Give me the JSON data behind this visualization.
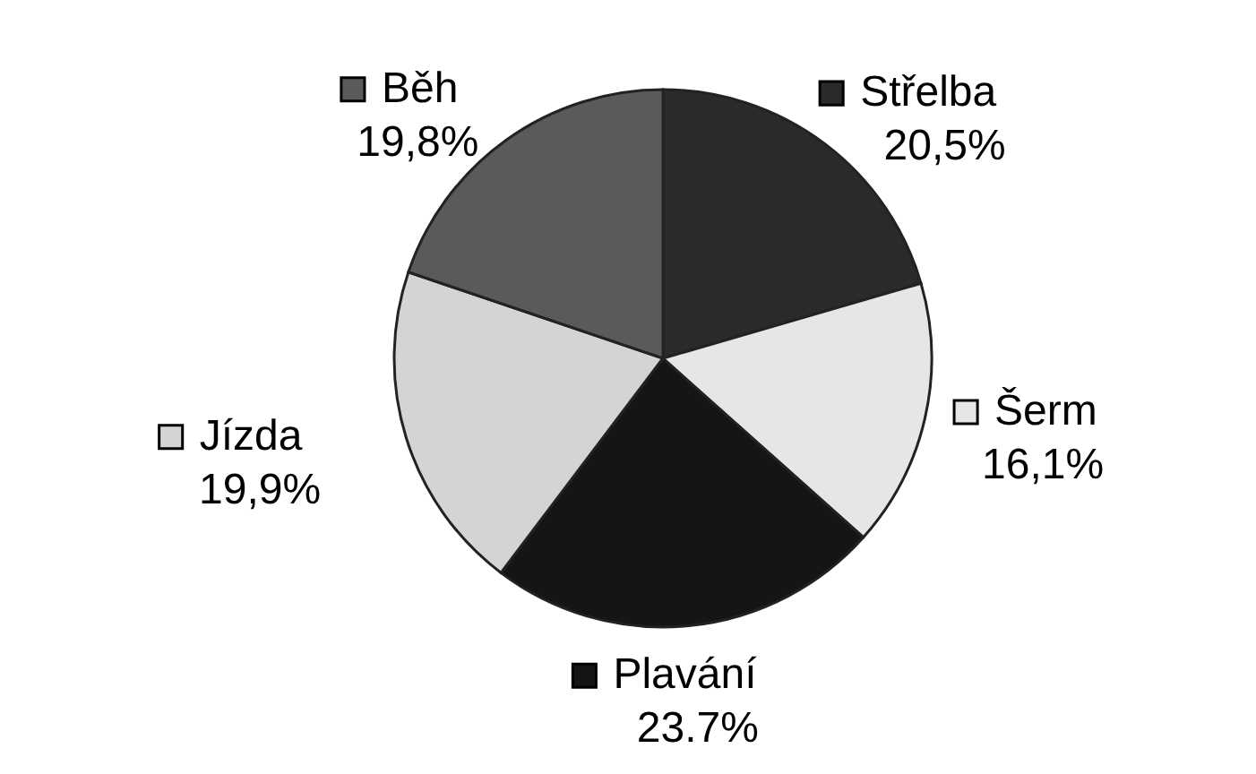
{
  "chart_data": {
    "type": "pie",
    "categories": [
      "Střelba",
      "Šerm",
      "Plavání",
      "Jízda",
      "Běh"
    ],
    "values": [
      20.5,
      16.1,
      23.7,
      19.9,
      19.8
    ],
    "value_labels": [
      "20,5%",
      "16,1%",
      "23.7%",
      "19,9%",
      "19,8%"
    ],
    "colors": [
      "#2a2a2a",
      "#e6e6e6",
      "#151515",
      "#d4d4d4",
      "#5a5a5a"
    ],
    "legend": "bottom left"
  }
}
